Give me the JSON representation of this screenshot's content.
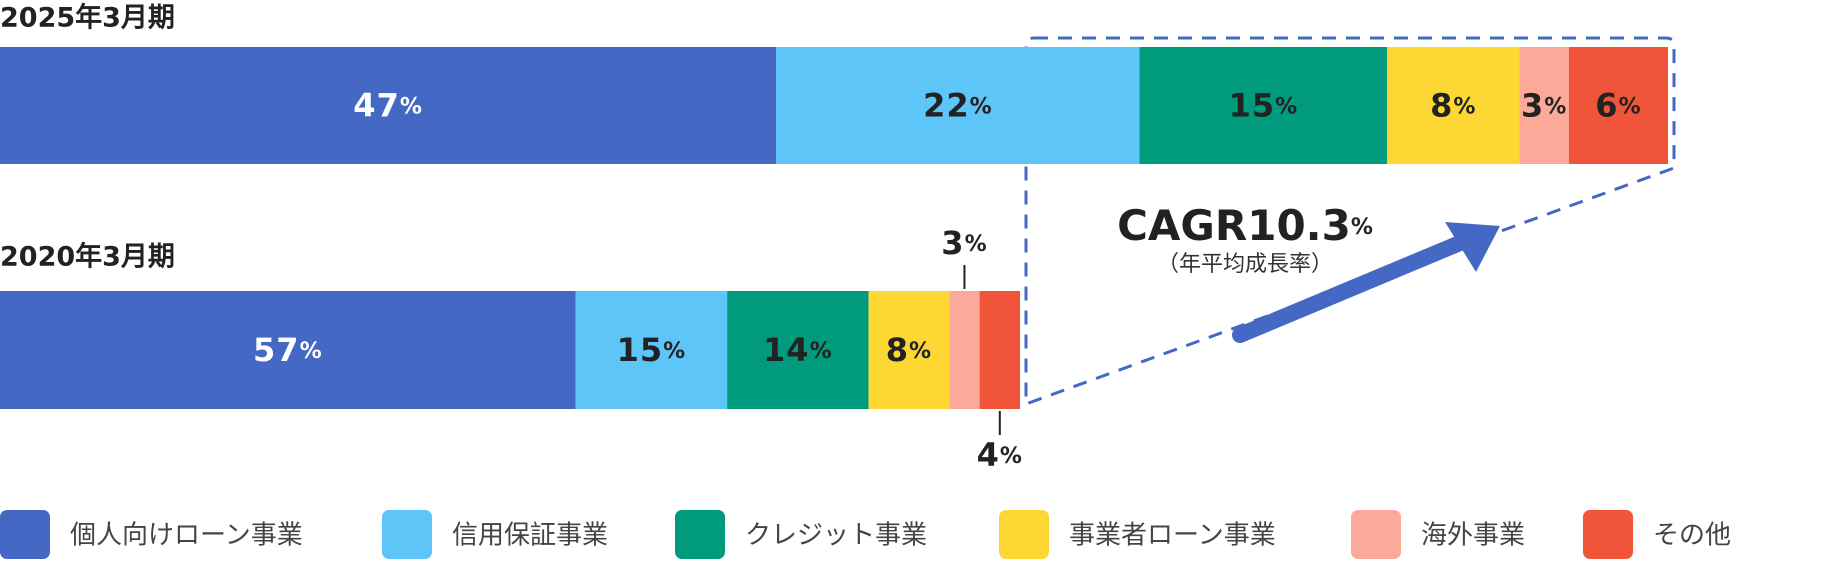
{
  "chart_data": {
    "type": "stacked-bar-horizontal",
    "categories": [
      "2025年3月期",
      "2020年3月期"
    ],
    "series": [
      {
        "name": "個人向けローン事業",
        "color": "#4468c4",
        "values": [
          47,
          57
        ],
        "value_labels": [
          "47%",
          "57%"
        ]
      },
      {
        "name": "信用保証事業",
        "color": "#5ec5f8",
        "values": [
          22,
          15
        ],
        "value_labels": [
          "22%",
          "15%"
        ]
      },
      {
        "name": "クレジット事業",
        "color": "#009b7d",
        "values": [
          15,
          14
        ],
        "value_labels": [
          "15%",
          "14%"
        ]
      },
      {
        "name": "事業者ローン事業",
        "color": "#fdd835",
        "values": [
          8,
          8
        ],
        "value_labels": [
          "8%",
          "8%"
        ]
      },
      {
        "name": "海外事業",
        "color": "#fbaa9a",
        "values": [
          3,
          3
        ],
        "value_labels": [
          "3%",
          "3%"
        ]
      },
      {
        "name": "その他",
        "color": "#f0553a",
        "values": [
          6,
          4
        ],
        "value_labels": [
          "6%",
          "4%"
        ]
      }
    ],
    "annotation": "CAGR10.3%",
    "annotation_note": "（年平均成長率）",
    "legend": "bottom"
  }
}
